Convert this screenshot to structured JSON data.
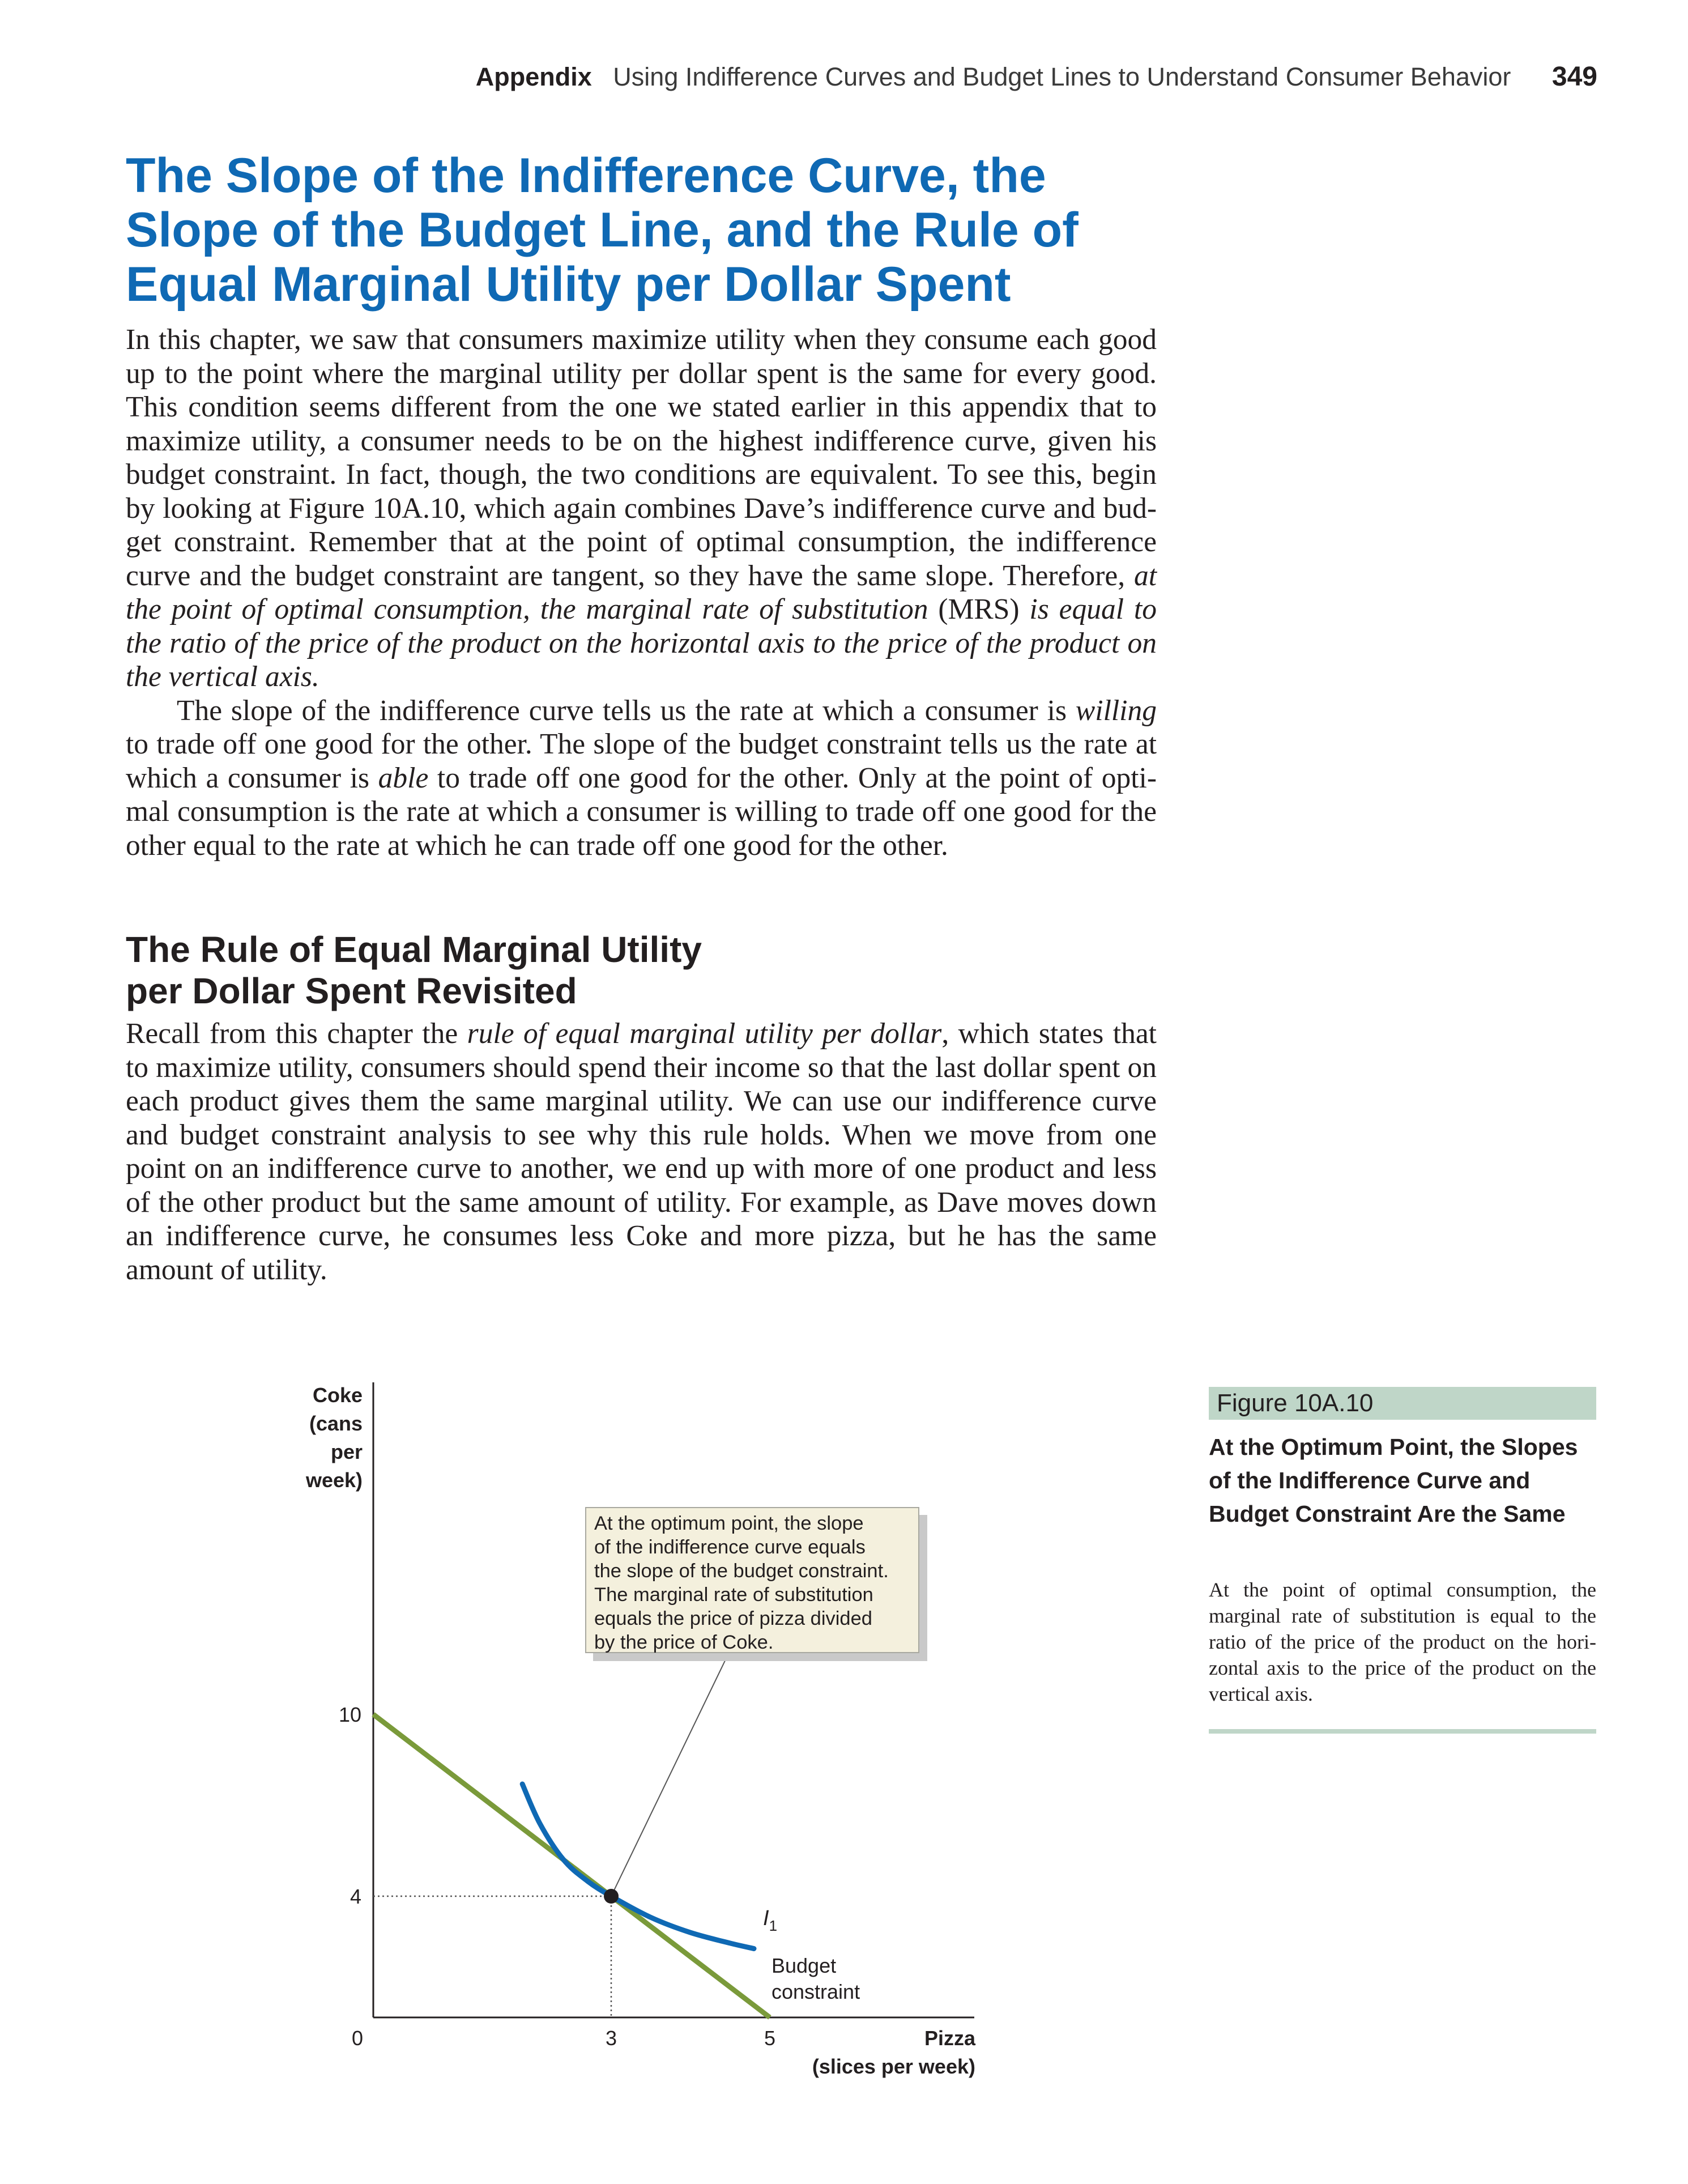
{
  "running_head": {
    "section": "Appendix",
    "title": "Using Indifference Curves and Budget Lines to Understand Consumer Behavior",
    "page_number": "349"
  },
  "heading_main": {
    "line1": "The Slope of the Indifference Curve, the",
    "line2": "Slope of the Budget Line, and the Rule of",
    "line3": "Equal Marginal Utility per Dollar Spent"
  },
  "para1": {
    "text": "In this chapter, we saw that consumers maximize utility when they consume each good up to the point where the marginal utility per dollar spent is the same for every good. This condition seems different from the one we stated earlier in this appendix that to maximize utility, a consumer needs to be on the highest indifference curve, given his budget constraint. In fact, though, the two conditions are equivalent. To see this, begin by looking at Figure 10A.10, which again combines Dave’s indifference curve and bud-get constraint. Remember that at the point of optimal consumption, the indifference curve and the budget constraint are tangent, so they have the same slope. Therefore, ",
    "em1": "at the point of optimal consumption, the marginal rate of substitution",
    "mid": " (MRS) ",
    "em2": "is equal to the ratio of the price of the product on the horizontal axis to the price of the product on the vertical axis."
  },
  "para2": {
    "a": "The slope of the indifference curve tells us the rate at which a consumer is ",
    "em_willing": "willing",
    "b": " to trade off one good for the other. The slope of the budget constraint tells us the rate at which a consumer is ",
    "em_able": "able",
    "c": " to trade off one good for the other. Only at the point of opti-mal consumption is the rate at which a consumer is willing to trade off one good for the other equal to the rate at which he can trade off one good for the other."
  },
  "heading_sub": {
    "line1": "The Rule of Equal Marginal Utility",
    "line2": "per Dollar Spent Revisited"
  },
  "para3": {
    "a": "Recall from this chapter the ",
    "em": "rule of equal marginal utility per dollar",
    "b": ", which states that to maximize utility, consumers should spend their income so that the last dollar spent on each product gives them the same marginal utility. We can use our indifference curve and budget constraint analysis to see why this rule holds. When we move from one point on an indifference curve to another, we end up with more of one product and less of the other product but the same amount of utility. For example, as Dave moves down an indifference curve, he consumes less Coke and more pizza, but he has the same amount of utility."
  },
  "figure": {
    "label": "Figure 10A.10",
    "title": "At the Optimum Point, the Slopes of the Indifference Curve and Budget Constraint Are the Same",
    "caption": "At the point of optimal consumption, the marginal rate of substitution is equal to the ratio of the price of the product on the hori-zontal axis to the price of the product on the vertical axis."
  },
  "chart_data": {
    "type": "line",
    "y_axis_label": [
      "Coke",
      "(cans",
      "per",
      "week)"
    ],
    "x_axis_label": [
      "Pizza",
      "(slices per week)"
    ],
    "x_ticks": [
      "0",
      "3",
      "5"
    ],
    "y_ticks": [
      "10",
      "4"
    ],
    "xlim": [
      0,
      7.6
    ],
    "ylim": [
      0,
      10
    ],
    "optimum_point": {
      "x": 3,
      "y": 4
    },
    "series": [
      {
        "name": "Budget constraint",
        "label_lines": [
          "Budget",
          "constraint"
        ],
        "color": "#7a9a3a",
        "points": [
          [
            0,
            10
          ],
          [
            5,
            0
          ]
        ]
      },
      {
        "name": "I1",
        "label_main": "I",
        "label_sub": "1",
        "color": "#0f69b4",
        "points": [
          [
            1.88,
            7.7
          ],
          [
            2.1,
            6.4
          ],
          [
            2.4,
            5.2
          ],
          [
            2.7,
            4.5
          ],
          [
            3.0,
            4.0
          ],
          [
            3.5,
            3.3
          ],
          [
            4.0,
            2.8
          ],
          [
            4.5,
            2.45
          ],
          [
            4.8,
            2.27
          ]
        ]
      }
    ],
    "callout": [
      "At the optimum point, the slope",
      "of the indifference curve equals",
      "the slope of the budget constraint.",
      "The marginal rate of substitution",
      "equals the price of pizza divided",
      "by the price of Coke."
    ]
  }
}
